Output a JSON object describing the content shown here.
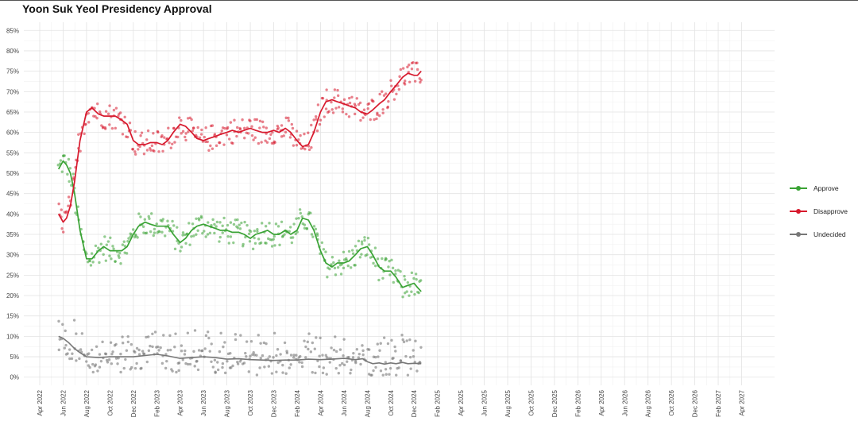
{
  "title": "Yoon Suk Yeol Presidency Approval",
  "legend": [
    {
      "label": "Approve",
      "color": "#3aa335"
    },
    {
      "label": "Disapprove",
      "color": "#d7192d"
    },
    {
      "label": "Undecided",
      "color": "#777777"
    }
  ],
  "chart_data": {
    "type": "line",
    "title": "Yoon Suk Yeol Presidency Approval",
    "xlabel": "",
    "ylabel": "",
    "y_tick_labels": [
      "0%",
      "5%",
      "10%",
      "15%",
      "20%",
      "25%",
      "30%",
      "35%",
      "40%",
      "45%",
      "50%",
      "55%",
      "60%",
      "65%",
      "70%",
      "75%",
      "80%",
      "85%"
    ],
    "ylim": [
      -2,
      87
    ],
    "x_tick_labels": [
      "Apr 2022",
      "Jun 2022",
      "Aug 2022",
      "Oct 2022",
      "Dec 2022",
      "Feb 2023",
      "Apr 2023",
      "Jun 2023",
      "Aug 2023",
      "Oct 2023",
      "Dec 2023",
      "Feb 2024",
      "Apr 2024",
      "Jun 2024",
      "Aug 2024",
      "Oct 2024",
      "Dec 2024",
      "Feb 2025",
      "Apr 2025",
      "Jun 2025",
      "Aug 2025",
      "Oct 2025",
      "Dec 2025",
      "Feb 2026",
      "Apr 2026",
      "Jun 2026",
      "Aug 2026",
      "Oct 2026",
      "Dec 2026",
      "Feb 2027",
      "Apr 2027"
    ],
    "grid": true,
    "legend_position": "right",
    "series_style": "points with smoothed trend line",
    "series": [
      {
        "name": "Approve",
        "color": "#3aa335",
        "points": [
          [
            "2022-05-20",
            51
          ],
          [
            "2022-06-01",
            53
          ],
          [
            "2022-06-10",
            52
          ],
          [
            "2022-06-20",
            50
          ],
          [
            "2022-07-01",
            45
          ],
          [
            "2022-07-15",
            36
          ],
          [
            "2022-08-01",
            29
          ],
          [
            "2022-08-15",
            29
          ],
          [
            "2022-09-01",
            31
          ],
          [
            "2022-09-15",
            32
          ],
          [
            "2022-10-01",
            31
          ],
          [
            "2022-10-15",
            31
          ],
          [
            "2022-11-01",
            31
          ],
          [
            "2022-11-15",
            32
          ],
          [
            "2022-12-01",
            35
          ],
          [
            "2022-12-15",
            37
          ],
          [
            "2023-01-01",
            38
          ],
          [
            "2023-01-15",
            37.5
          ],
          [
            "2023-02-01",
            37
          ],
          [
            "2023-02-15",
            37
          ],
          [
            "2023-03-01",
            37
          ],
          [
            "2023-03-15",
            35
          ],
          [
            "2023-04-01",
            33
          ],
          [
            "2023-04-15",
            34
          ],
          [
            "2023-05-01",
            36
          ],
          [
            "2023-05-15",
            37
          ],
          [
            "2023-06-01",
            37.5
          ],
          [
            "2023-06-15",
            37
          ],
          [
            "2023-07-01",
            36.5
          ],
          [
            "2023-07-15",
            36
          ],
          [
            "2023-08-01",
            36
          ],
          [
            "2023-08-15",
            35.5
          ],
          [
            "2023-09-01",
            35.5
          ],
          [
            "2023-09-15",
            35
          ],
          [
            "2023-10-01",
            34
          ],
          [
            "2023-10-15",
            35
          ],
          [
            "2023-11-01",
            35.5
          ],
          [
            "2023-11-15",
            36
          ],
          [
            "2023-12-01",
            35
          ],
          [
            "2023-12-15",
            35
          ],
          [
            "2024-01-01",
            36
          ],
          [
            "2024-01-15",
            35
          ],
          [
            "2024-02-01",
            36
          ],
          [
            "2024-02-15",
            39
          ],
          [
            "2024-03-01",
            38.5
          ],
          [
            "2024-03-15",
            36
          ],
          [
            "2024-04-01",
            31
          ],
          [
            "2024-04-15",
            28
          ],
          [
            "2024-05-01",
            27
          ],
          [
            "2024-05-15",
            28
          ],
          [
            "2024-06-01",
            28
          ],
          [
            "2024-06-15",
            28.5
          ],
          [
            "2024-07-01",
            30
          ],
          [
            "2024-07-15",
            31.5
          ],
          [
            "2024-08-01",
            32
          ],
          [
            "2024-08-15",
            30
          ],
          [
            "2024-09-01",
            27
          ],
          [
            "2024-09-15",
            26
          ],
          [
            "2024-10-01",
            26
          ],
          [
            "2024-10-15",
            24.5
          ],
          [
            "2024-11-01",
            22
          ],
          [
            "2024-11-15",
            22.5
          ],
          [
            "2024-12-01",
            23
          ],
          [
            "2024-12-10",
            22
          ],
          [
            "2024-12-20",
            21
          ]
        ]
      },
      {
        "name": "Disapprove",
        "color": "#d7192d",
        "points": [
          [
            "2022-05-20",
            40
          ],
          [
            "2022-06-01",
            38
          ],
          [
            "2022-06-10",
            39
          ],
          [
            "2022-06-20",
            42
          ],
          [
            "2022-07-01",
            48
          ],
          [
            "2022-07-15",
            58
          ],
          [
            "2022-08-01",
            65
          ],
          [
            "2022-08-15",
            66
          ],
          [
            "2022-09-01",
            64.5
          ],
          [
            "2022-09-15",
            64
          ],
          [
            "2022-10-01",
            64
          ],
          [
            "2022-10-15",
            64
          ],
          [
            "2022-11-01",
            63
          ],
          [
            "2022-11-15",
            62
          ],
          [
            "2022-12-01",
            58
          ],
          [
            "2022-12-15",
            57
          ],
          [
            "2023-01-01",
            57
          ],
          [
            "2023-01-15",
            57.5
          ],
          [
            "2023-02-01",
            57.5
          ],
          [
            "2023-02-15",
            57
          ],
          [
            "2023-03-01",
            58
          ],
          [
            "2023-03-15",
            60
          ],
          [
            "2023-04-01",
            62
          ],
          [
            "2023-04-15",
            61.5
          ],
          [
            "2023-05-01",
            60
          ],
          [
            "2023-05-15",
            58.5
          ],
          [
            "2023-06-01",
            58
          ],
          [
            "2023-06-15",
            58.5
          ],
          [
            "2023-07-01",
            59
          ],
          [
            "2023-07-15",
            59.5
          ],
          [
            "2023-08-01",
            60
          ],
          [
            "2023-08-15",
            60.5
          ],
          [
            "2023-09-01",
            60
          ],
          [
            "2023-09-15",
            60.5
          ],
          [
            "2023-10-01",
            61
          ],
          [
            "2023-10-15",
            60.5
          ],
          [
            "2023-11-01",
            60
          ],
          [
            "2023-11-15",
            60
          ],
          [
            "2023-12-01",
            60.5
          ],
          [
            "2023-12-15",
            60
          ],
          [
            "2024-01-01",
            61
          ],
          [
            "2024-01-15",
            60
          ],
          [
            "2024-02-01",
            58
          ],
          [
            "2024-02-15",
            56.5
          ],
          [
            "2024-03-01",
            57
          ],
          [
            "2024-03-15",
            60
          ],
          [
            "2024-04-01",
            65
          ],
          [
            "2024-04-15",
            67.5
          ],
          [
            "2024-05-01",
            68
          ],
          [
            "2024-05-15",
            67.5
          ],
          [
            "2024-06-01",
            67
          ],
          [
            "2024-06-15",
            66.5
          ],
          [
            "2024-07-01",
            66
          ],
          [
            "2024-07-15",
            65
          ],
          [
            "2024-08-01",
            64.5
          ],
          [
            "2024-08-15",
            65.5
          ],
          [
            "2024-09-01",
            67
          ],
          [
            "2024-09-15",
            68
          ],
          [
            "2024-10-01",
            70
          ],
          [
            "2024-10-15",
            71.5
          ],
          [
            "2024-11-01",
            73.5
          ],
          [
            "2024-11-15",
            74.5
          ],
          [
            "2024-12-01",
            74
          ],
          [
            "2024-12-10",
            74
          ],
          [
            "2024-12-20",
            75
          ]
        ]
      },
      {
        "name": "Undecided",
        "color": "#777777",
        "points": [
          [
            "2022-05-20",
            10
          ],
          [
            "2022-06-01",
            9.5
          ],
          [
            "2022-06-15",
            8.5
          ],
          [
            "2022-07-01",
            7
          ],
          [
            "2022-07-15",
            6
          ],
          [
            "2022-08-01",
            5
          ],
          [
            "2022-09-01",
            4.8
          ],
          [
            "2022-10-01",
            5
          ],
          [
            "2022-11-01",
            5
          ],
          [
            "2022-12-01",
            5
          ],
          [
            "2023-01-01",
            5.3
          ],
          [
            "2023-02-01",
            5.6
          ],
          [
            "2023-03-01",
            5.2
          ],
          [
            "2023-04-01",
            4.6
          ],
          [
            "2023-05-01",
            4.8
          ],
          [
            "2023-06-01",
            5
          ],
          [
            "2023-07-01",
            4.8
          ],
          [
            "2023-08-01",
            4.4
          ],
          [
            "2023-09-01",
            4.5
          ],
          [
            "2023-10-01",
            4.3
          ],
          [
            "2023-11-01",
            4.2
          ],
          [
            "2023-12-01",
            4.1
          ],
          [
            "2024-01-01",
            4.2
          ],
          [
            "2024-02-01",
            4.2
          ],
          [
            "2024-03-01",
            4.4
          ],
          [
            "2024-04-01",
            4.3
          ],
          [
            "2024-05-01",
            4.4
          ],
          [
            "2024-06-01",
            4.6
          ],
          [
            "2024-07-01",
            4.3
          ],
          [
            "2024-07-20",
            4.5
          ],
          [
            "2024-08-01",
            3.8
          ],
          [
            "2024-08-15",
            3.3
          ],
          [
            "2024-09-01",
            3.5
          ],
          [
            "2024-09-15",
            3.2
          ],
          [
            "2024-10-01",
            3.5
          ],
          [
            "2024-10-15",
            3.3
          ],
          [
            "2024-11-01",
            3.6
          ],
          [
            "2024-11-15",
            3.3
          ],
          [
            "2024-12-01",
            3.4
          ],
          [
            "2024-12-20",
            3.3
          ]
        ]
      }
    ]
  }
}
